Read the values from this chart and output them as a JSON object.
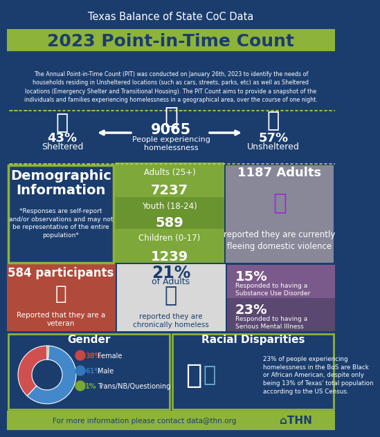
{
  "title_top": "Texas Balance of State CoC Data",
  "title_main": "2023 Point-in-Time Count",
  "description": "The Annual Point-in-Time Count (PIT) was conducted on January 26th, 2023 to identify the needs of\nhouseholds residing in Unsheltered locations (such as cars, streets, parks, etc) as well as Sheltered\nlocations (Emergency Shelter and Transitional Housing). The PIT Count aims to provide a snapshot of the\nindividuals and families experiencing homelessness in a geographical area, over the course of one night.",
  "total_people": "9065",
  "total_label": "People experiencing\nhomelessness",
  "sheltered_pct": "43%",
  "sheltered_label": "Sheltered",
  "unsheltered_pct": "57%",
  "unsheltered_label": "Unsheltered",
  "demo_title": "Demographic\nInformation",
  "demo_note": "*Responses are self-report\nand/or observations and may not\nbe representative of the entire\npopulation*",
  "adults_label": "Adults (25+)",
  "adults_value": "7237",
  "youth_label": "Youth (18-24)",
  "youth_value": "589",
  "children_label": "Children (0-17)",
  "children_value": "1239",
  "adults_dv_value": "1187 Adults",
  "adults_dv_label": "reported they are currently\nfleeing domestic violence",
  "veteran_value": "584 participants",
  "veteran_label": "Reported that they are a\nveteran",
  "chronic_pct": "21%",
  "chronic_label": "of Adults",
  "chronic_sublabel": "reported they are\nchronically homeless",
  "substance_pct": "15%",
  "substance_label": "Responded to having a\nSubstance Use Disorder",
  "mental_pct": "23%",
  "mental_label": "Responded to having a\nSerious Mental Illness",
  "gender_title": "Gender",
  "female_pct": 38,
  "male_pct": 61,
  "trans_pct": 1,
  "female_label": "Female",
  "male_label": "Male",
  "trans_label": "Trans/NB/Questioning",
  "racial_title": "Racial Disparities",
  "racial_text": "23% of people experiencing\nhomelessness in the BoS are Black\nor African American, despite only\nbeing 13% of Texas' total population\naccording to the US Census.",
  "footer": "For more information please contact data@thn.org",
  "thn_logo": "⌂THN",
  "color_dark_blue": "#1b3d6e",
  "color_green_banner": "#8db33a",
  "color_green_cell1": "#7ea83a",
  "color_green_cell2": "#6a9430",
  "color_green_cell3": "#7ea83a",
  "color_gray_dv": "#888899",
  "color_brown_vet": "#b04a3a",
  "color_light_bg": "#d8d8d8",
  "color_purple_sub": "#7a5a8a",
  "color_purple_ment": "#5a4870",
  "color_green_bottom": "#3a6a2a",
  "color_white": "#ffffff",
  "color_yellow_dot": "#c8d44a",
  "color_footer_bg": "#8db33a",
  "color_pie_female": "#d05050",
  "color_pie_male": "#4488cc",
  "color_pie_trans": "#88aa44",
  "color_female_dot": "#cc4444",
  "color_male_dot": "#3377bb",
  "color_trans_dot": "#77aa33"
}
